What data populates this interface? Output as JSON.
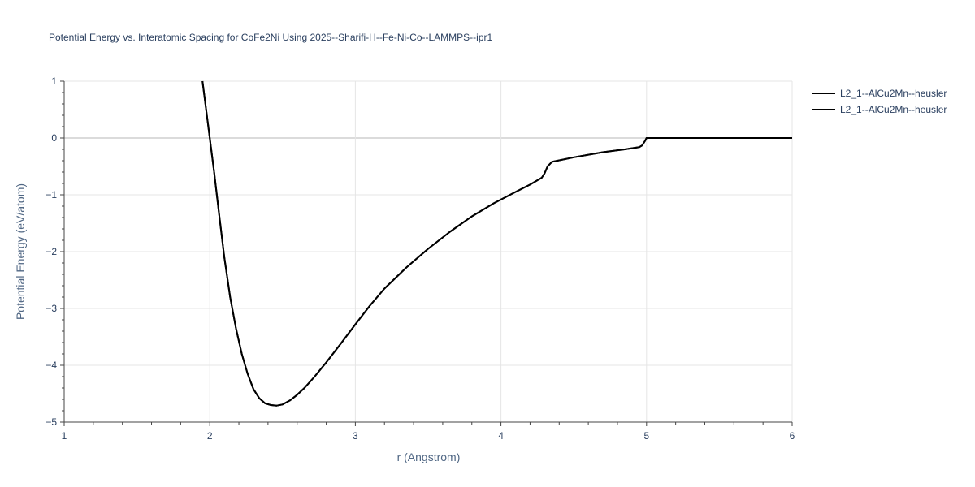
{
  "chart_data": {
    "type": "line",
    "title": "Potential Energy vs. Interatomic Spacing for CoFe2Ni Using 2025--Sharifi-H--Fe-Ni-Co--LAMMPS--ipr1",
    "xlabel": "r (Angstrom)",
    "ylabel": "Potential Energy (eV/atom)",
    "xlim": [
      1,
      6
    ],
    "ylim": [
      -5,
      1
    ],
    "x_ticks": [
      "1",
      "2",
      "3",
      "4",
      "5",
      "6"
    ],
    "y_ticks": [
      "−5",
      "−4",
      "−3",
      "−2",
      "−1",
      "0",
      "1"
    ],
    "grid": true,
    "legend_position": "top-right",
    "series": [
      {
        "name": "L2_1--AlCu2Mn--heusler",
        "color": "#000000",
        "x": [
          1.95,
          1.98,
          2.0,
          2.03,
          2.06,
          2.1,
          2.14,
          2.18,
          2.22,
          2.26,
          2.3,
          2.34,
          2.38,
          2.42,
          2.46,
          2.5,
          2.55,
          2.6,
          2.65,
          2.72,
          2.8,
          2.9,
          3.0,
          3.1,
          3.2,
          3.35,
          3.5,
          3.65,
          3.8,
          3.95,
          4.1,
          4.2,
          4.28,
          4.3,
          4.32,
          4.35,
          4.5,
          4.7,
          4.85,
          4.95,
          4.97,
          4.99,
          5.0,
          5.5,
          6.0
        ],
        "y": [
          1.0,
          0.4,
          0.0,
          -0.6,
          -1.25,
          -2.1,
          -2.8,
          -3.35,
          -3.8,
          -4.15,
          -4.42,
          -4.58,
          -4.67,
          -4.7,
          -4.71,
          -4.69,
          -4.62,
          -4.52,
          -4.4,
          -4.2,
          -3.95,
          -3.62,
          -3.28,
          -2.95,
          -2.65,
          -2.28,
          -1.95,
          -1.65,
          -1.38,
          -1.15,
          -0.95,
          -0.82,
          -0.7,
          -0.62,
          -0.5,
          -0.42,
          -0.34,
          -0.25,
          -0.2,
          -0.16,
          -0.13,
          -0.05,
          0.0,
          0.0,
          0.0
        ]
      },
      {
        "name": "L2_1--AlCu2Mn--heusler",
        "color": "#000000",
        "x": [
          1.95,
          1.98,
          2.0,
          2.03,
          2.06,
          2.1,
          2.14,
          2.18,
          2.22,
          2.26,
          2.3,
          2.34,
          2.38,
          2.42,
          2.46,
          2.5,
          2.55,
          2.6,
          2.65,
          2.72,
          2.8,
          2.9,
          3.0,
          3.1,
          3.2,
          3.35,
          3.5,
          3.65,
          3.8,
          3.95,
          4.1,
          4.2,
          4.28,
          4.3,
          4.32,
          4.35,
          4.5,
          4.7,
          4.85,
          4.95,
          4.97,
          4.99,
          5.0,
          5.5,
          6.0
        ],
        "y": [
          1.0,
          0.4,
          0.0,
          -0.6,
          -1.25,
          -2.1,
          -2.8,
          -3.35,
          -3.8,
          -4.15,
          -4.42,
          -4.58,
          -4.67,
          -4.7,
          -4.71,
          -4.69,
          -4.62,
          -4.52,
          -4.4,
          -4.2,
          -3.95,
          -3.62,
          -3.28,
          -2.95,
          -2.65,
          -2.28,
          -1.95,
          -1.65,
          -1.38,
          -1.15,
          -0.95,
          -0.82,
          -0.7,
          -0.62,
          -0.5,
          -0.42,
          -0.34,
          -0.25,
          -0.2,
          -0.16,
          -0.13,
          -0.05,
          0.0,
          0.0,
          0.0
        ]
      }
    ]
  }
}
